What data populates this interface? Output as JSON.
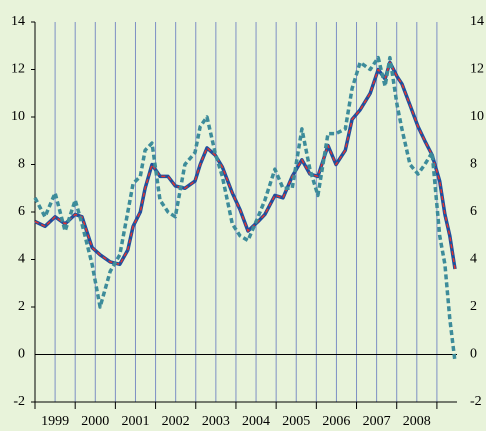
{
  "chart_data": {
    "type": "line",
    "x": [
      1999.0,
      1999.25,
      1999.5,
      1999.75,
      2000.0,
      2000.17,
      2000.42,
      2000.62,
      2000.87,
      2001.11,
      2001.31,
      2001.44,
      2001.62,
      2001.74,
      2001.91,
      2002.11,
      2002.31,
      2002.49,
      2002.73,
      2002.98,
      2003.11,
      2003.28,
      2003.48,
      2003.66,
      2003.91,
      2004.1,
      2004.3,
      2004.55,
      2004.72,
      2004.97,
      2005.17,
      2005.4,
      2005.64,
      2005.84,
      2006.04,
      2006.29,
      2006.49,
      2006.72,
      2006.89,
      2007.09,
      2007.34,
      2007.54,
      2007.71,
      2007.83,
      2008.01,
      2008.13,
      2008.33,
      2008.53,
      2008.7,
      2008.88,
      2009.07,
      2009.2,
      2009.32,
      2009.45
    ],
    "series": [
      {
        "color": "#1f4f9e",
        "style": "solid",
        "values": [
          5.6,
          5.4,
          5.8,
          5.5,
          5.9,
          5.8,
          4.5,
          4.2,
          3.9,
          3.8,
          4.4,
          5.4,
          6.0,
          7.0,
          8.0,
          7.5,
          7.5,
          7.1,
          7.0,
          7.3,
          8.0,
          8.7,
          8.4,
          7.9,
          6.8,
          6.1,
          5.2,
          5.6,
          5.9,
          6.7,
          6.6,
          7.5,
          8.2,
          7.6,
          7.5,
          8.8,
          8.0,
          8.6,
          9.9,
          10.3,
          11.0,
          12.0,
          11.6,
          12.3,
          11.7,
          11.4,
          10.5,
          9.6,
          9.0,
          8.4,
          7.3,
          5.9,
          5.0,
          3.6
        ]
      },
      {
        "color": "#e2342f",
        "style": "dashed",
        "values": [
          5.6,
          5.4,
          5.8,
          5.5,
          5.9,
          5.8,
          4.5,
          4.2,
          3.9,
          3.8,
          4.4,
          5.4,
          6.0,
          7.0,
          8.0,
          7.5,
          7.5,
          7.1,
          7.0,
          7.3,
          8.0,
          8.7,
          8.4,
          7.9,
          6.8,
          6.1,
          5.2,
          5.6,
          5.9,
          6.7,
          6.6,
          7.5,
          8.2,
          7.6,
          7.5,
          8.8,
          8.0,
          8.6,
          9.9,
          10.3,
          11.0,
          12.0,
          11.6,
          12.3,
          11.7,
          11.4,
          10.5,
          9.6,
          9.0,
          8.4,
          7.3,
          5.9,
          5.0,
          3.6
        ]
      },
      {
        "color": "#3d8c9a",
        "style": "dashed-thick",
        "values": [
          6.6,
          5.8,
          6.8,
          5.2,
          6.5,
          5.5,
          3.8,
          2.0,
          3.5,
          4.2,
          6.0,
          7.2,
          7.5,
          8.6,
          8.9,
          6.5,
          6.0,
          5.8,
          8.0,
          8.5,
          9.6,
          10.0,
          8.5,
          7.5,
          5.5,
          5.0,
          4.8,
          5.8,
          6.5,
          7.8,
          7.0,
          7.0,
          9.5,
          7.8,
          6.7,
          9.3,
          9.3,
          9.5,
          11.2,
          12.3,
          12.0,
          12.5,
          11.3,
          12.5,
          10.5,
          9.5,
          8.0,
          7.6,
          8.0,
          8.5,
          5.0,
          3.8,
          1.5,
          -0.3
        ]
      }
    ],
    "xlim": [
      1999,
      2009.5
    ],
    "xticks": [
      {
        "value": 1999.5,
        "label": "1999"
      },
      {
        "value": 2000.5,
        "label": "2000"
      },
      {
        "value": 2001.5,
        "label": "2001"
      },
      {
        "value": 2002.5,
        "label": "2002"
      },
      {
        "value": 2003.5,
        "label": "2003"
      },
      {
        "value": 2004.5,
        "label": "2004"
      },
      {
        "value": 2005.5,
        "label": "2005"
      },
      {
        "value": 2006.5,
        "label": "2006"
      },
      {
        "value": 2007.5,
        "label": "2007"
      },
      {
        "value": 2008.5,
        "label": "2008"
      }
    ],
    "xminorticks": [
      1999,
      2000,
      2001,
      2002,
      2003,
      2004,
      2005,
      2006,
      2007,
      2008,
      2009
    ],
    "ylim": [
      -2,
      14
    ],
    "yticks": [
      -2,
      0,
      2,
      4,
      6,
      8,
      10,
      12,
      14
    ],
    "y2lim": [
      -2,
      14
    ],
    "y2ticks": [
      -2,
      0,
      2,
      4,
      6,
      8,
      10,
      12,
      14
    ],
    "grid": true
  }
}
